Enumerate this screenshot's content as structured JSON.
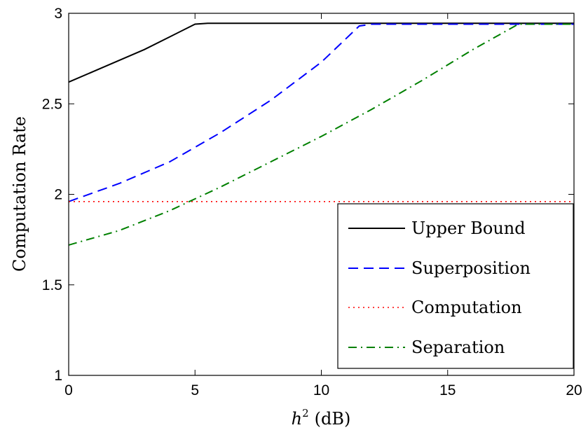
{
  "chart_data": {
    "type": "line",
    "xlabel": "h",
    "xlabel_sup": "2",
    "xlabel_unit": "(dB)",
    "ylabel": "Computation Rate",
    "xlim": [
      0,
      20
    ],
    "ylim": [
      1,
      3
    ],
    "x_ticks": [
      "0",
      "5",
      "10",
      "15",
      "20"
    ],
    "y_ticks": [
      "1",
      "1.5",
      "2",
      "2.5",
      "3"
    ],
    "grid": false,
    "legend_position": "bottom-right",
    "series": [
      {
        "name": "Upper Bound",
        "style": "solid",
        "color": "#000000",
        "x": [
          0,
          1,
          2,
          3,
          4,
          5,
          5.5,
          20
        ],
        "y": [
          2.62,
          2.68,
          2.74,
          2.8,
          2.87,
          2.94,
          2.945,
          2.945
        ]
      },
      {
        "name": "Superposition",
        "style": "dashed",
        "color": "#0000ff",
        "x": [
          0,
          2,
          4,
          6,
          8,
          10,
          11.5,
          12,
          20
        ],
        "y": [
          1.96,
          2.06,
          2.18,
          2.34,
          2.52,
          2.73,
          2.93,
          2.94,
          2.94
        ]
      },
      {
        "name": "Computation",
        "style": "dotted",
        "color": "#ff0000",
        "x": [
          0,
          20
        ],
        "y": [
          1.96,
          1.96
        ]
      },
      {
        "name": "Separation",
        "style": "dashdot",
        "color": "#008000",
        "x": [
          0,
          2,
          4,
          6,
          8,
          10,
          12,
          14,
          16,
          17.8,
          20
        ],
        "y": [
          1.72,
          1.8,
          1.91,
          2.04,
          2.18,
          2.32,
          2.47,
          2.63,
          2.8,
          2.94,
          2.94
        ]
      }
    ]
  }
}
